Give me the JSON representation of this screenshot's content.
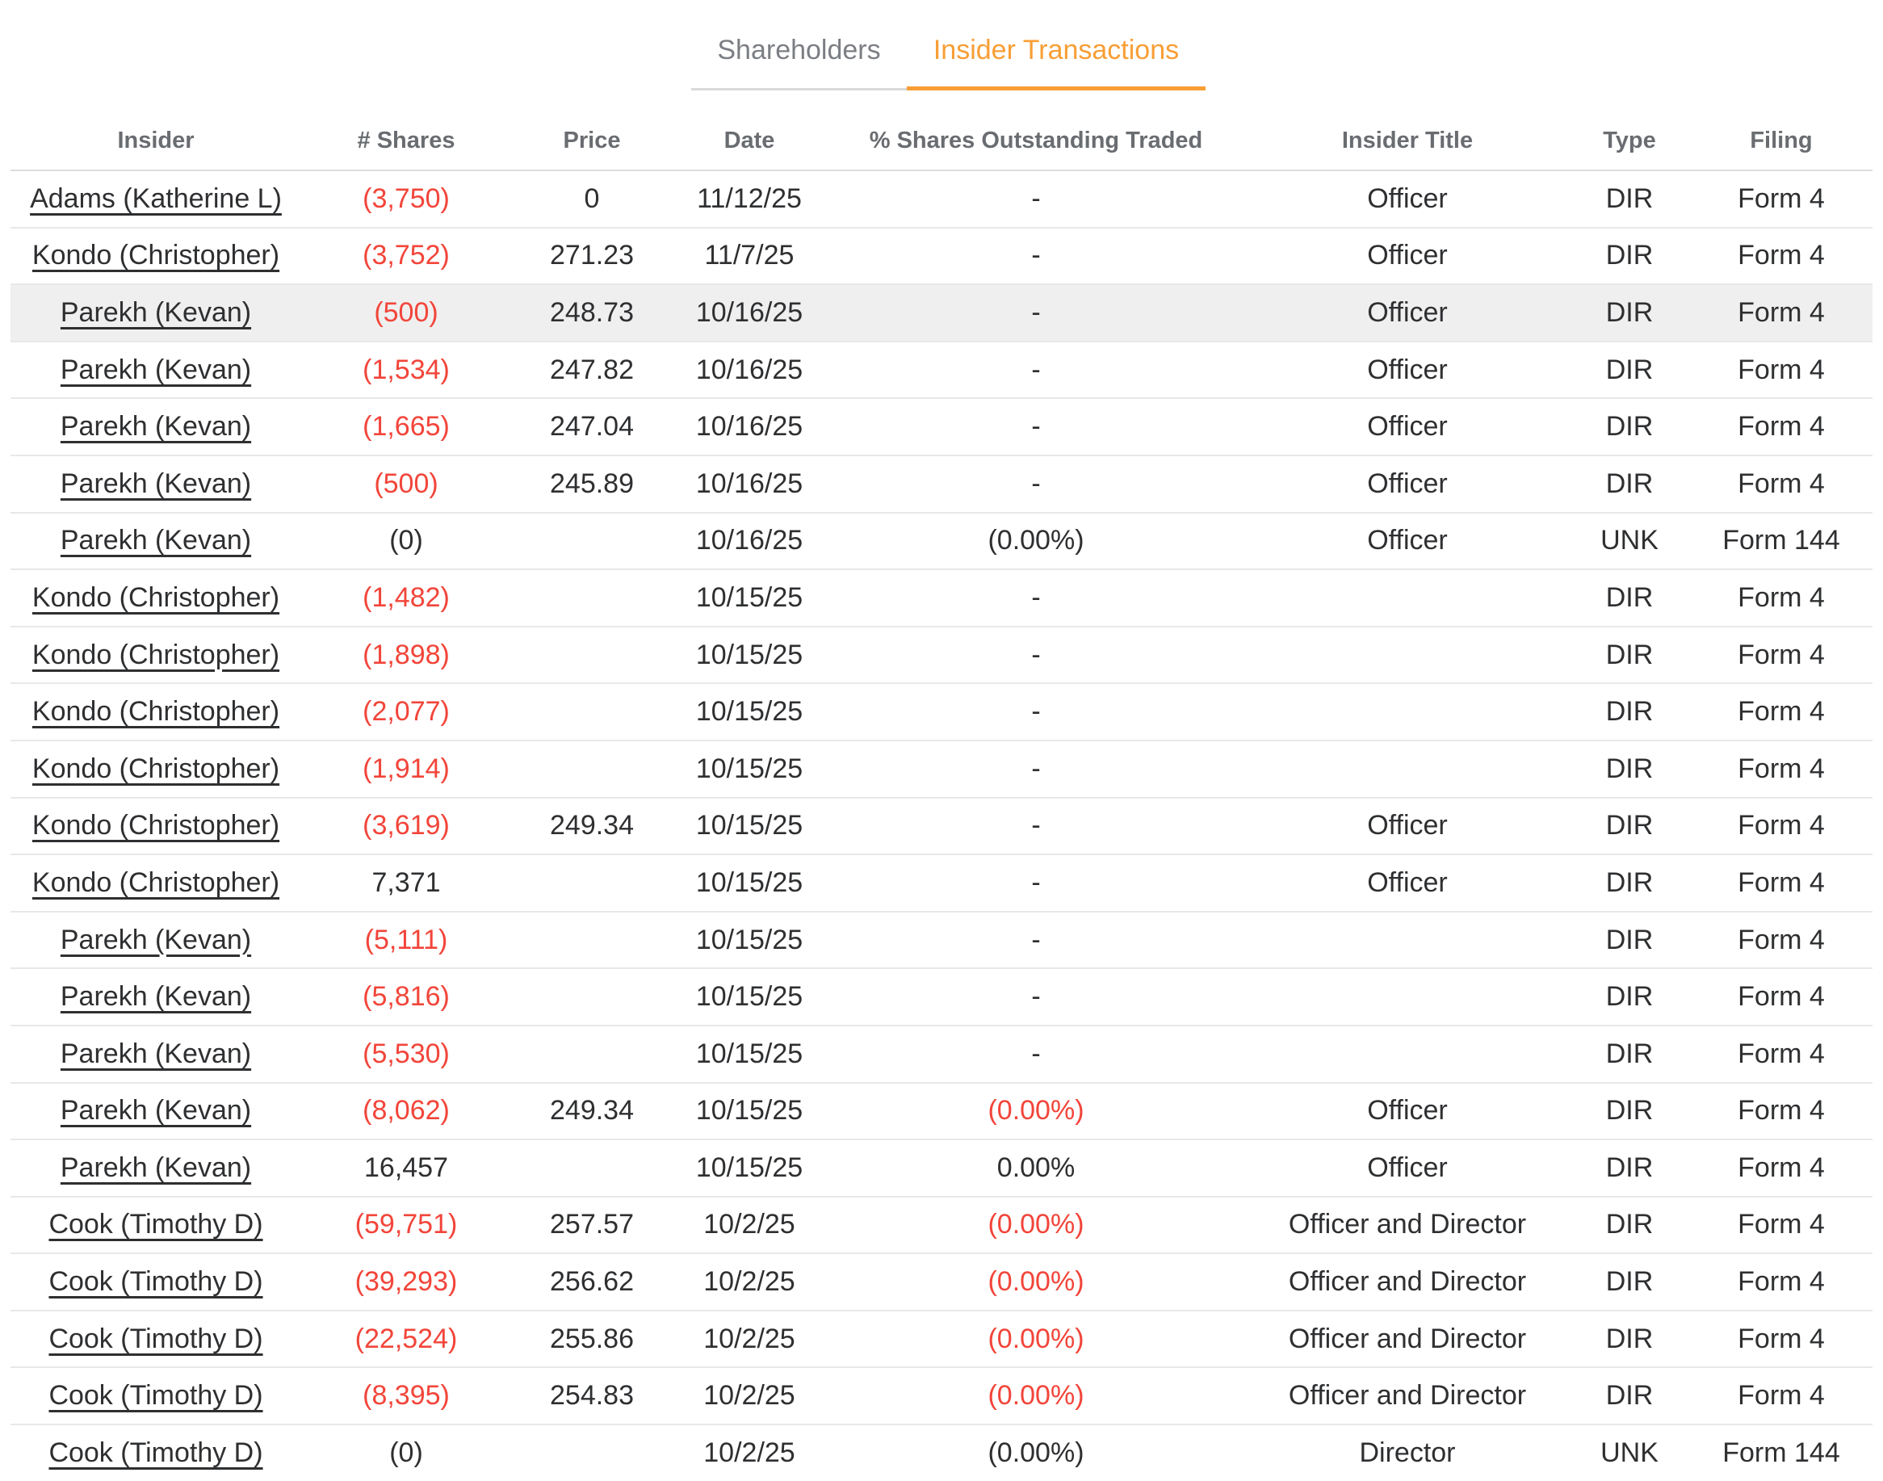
{
  "colors": {
    "accent_orange": "#F89E35",
    "negative_red": "#F2453A",
    "highlight_row_bg": "#EFEFEF",
    "inactive_tab_gray": "#7B7E83"
  },
  "tabs": [
    {
      "label": "Shareholders",
      "active": false
    },
    {
      "label": "Insider Transactions",
      "active": true
    }
  ],
  "table": {
    "columns": [
      {
        "key": "insider",
        "label": "Insider"
      },
      {
        "key": "shares",
        "label": "# Shares"
      },
      {
        "key": "price",
        "label": "Price"
      },
      {
        "key": "date",
        "label": "Date"
      },
      {
        "key": "pct-outstanding",
        "label": "% Shares Outstanding Traded"
      },
      {
        "key": "insider-title",
        "label": "Insider Title"
      },
      {
        "key": "type",
        "label": "Type"
      },
      {
        "key": "filing",
        "label": "Filing"
      }
    ],
    "rows": [
      {
        "insider": "Adams (Katherine L)",
        "shares": "(3,750)",
        "shares_red": true,
        "price": "0",
        "date": "11/12/25",
        "pct_outstanding": "-",
        "pct_red": false,
        "insider_title": "Officer",
        "type": "DIR",
        "filing": "Form 4",
        "highlighted": false
      },
      {
        "insider": "Kondo (Christopher)",
        "shares": "(3,752)",
        "shares_red": true,
        "price": "271.23",
        "date": "11/7/25",
        "pct_outstanding": "-",
        "pct_red": false,
        "insider_title": "Officer",
        "type": "DIR",
        "filing": "Form 4",
        "highlighted": false
      },
      {
        "insider": "Parekh (Kevan)",
        "shares": "(500)",
        "shares_red": true,
        "price": "248.73",
        "date": "10/16/25",
        "pct_outstanding": "-",
        "pct_red": false,
        "insider_title": "Officer",
        "type": "DIR",
        "filing": "Form 4",
        "highlighted": true
      },
      {
        "insider": "Parekh (Kevan)",
        "shares": "(1,534)",
        "shares_red": true,
        "price": "247.82",
        "date": "10/16/25",
        "pct_outstanding": "-",
        "pct_red": false,
        "insider_title": "Officer",
        "type": "DIR",
        "filing": "Form 4",
        "highlighted": false
      },
      {
        "insider": "Parekh (Kevan)",
        "shares": "(1,665)",
        "shares_red": true,
        "price": "247.04",
        "date": "10/16/25",
        "pct_outstanding": "-",
        "pct_red": false,
        "insider_title": "Officer",
        "type": "DIR",
        "filing": "Form 4",
        "highlighted": false
      },
      {
        "insider": "Parekh (Kevan)",
        "shares": "(500)",
        "shares_red": true,
        "price": "245.89",
        "date": "10/16/25",
        "pct_outstanding": "-",
        "pct_red": false,
        "insider_title": "Officer",
        "type": "DIR",
        "filing": "Form 4",
        "highlighted": false
      },
      {
        "insider": "Parekh (Kevan)",
        "shares": "(0)",
        "shares_red": false,
        "price": "",
        "date": "10/16/25",
        "pct_outstanding": "(0.00%)",
        "pct_red": false,
        "insider_title": "Officer",
        "type": "UNK",
        "filing": "Form 144",
        "highlighted": false
      },
      {
        "insider": "Kondo (Christopher)",
        "shares": "(1,482)",
        "shares_red": true,
        "price": "",
        "date": "10/15/25",
        "pct_outstanding": "-",
        "pct_red": false,
        "insider_title": "",
        "type": "DIR",
        "filing": "Form 4",
        "highlighted": false
      },
      {
        "insider": "Kondo (Christopher)",
        "shares": "(1,898)",
        "shares_red": true,
        "price": "",
        "date": "10/15/25",
        "pct_outstanding": "-",
        "pct_red": false,
        "insider_title": "",
        "type": "DIR",
        "filing": "Form 4",
        "highlighted": false
      },
      {
        "insider": "Kondo (Christopher)",
        "shares": "(2,077)",
        "shares_red": true,
        "price": "",
        "date": "10/15/25",
        "pct_outstanding": "-",
        "pct_red": false,
        "insider_title": "",
        "type": "DIR",
        "filing": "Form 4",
        "highlighted": false
      },
      {
        "insider": "Kondo (Christopher)",
        "shares": "(1,914)",
        "shares_red": true,
        "price": "",
        "date": "10/15/25",
        "pct_outstanding": "-",
        "pct_red": false,
        "insider_title": "",
        "type": "DIR",
        "filing": "Form 4",
        "highlighted": false
      },
      {
        "insider": "Kondo (Christopher)",
        "shares": "(3,619)",
        "shares_red": true,
        "price": "249.34",
        "date": "10/15/25",
        "pct_outstanding": "-",
        "pct_red": false,
        "insider_title": "Officer",
        "type": "DIR",
        "filing": "Form 4",
        "highlighted": false
      },
      {
        "insider": "Kondo (Christopher)",
        "shares": "7,371",
        "shares_red": false,
        "price": "",
        "date": "10/15/25",
        "pct_outstanding": "-",
        "pct_red": false,
        "insider_title": "Officer",
        "type": "DIR",
        "filing": "Form 4",
        "highlighted": false
      },
      {
        "insider": "Parekh (Kevan)",
        "shares": "(5,111)",
        "shares_red": true,
        "price": "",
        "date": "10/15/25",
        "pct_outstanding": "-",
        "pct_red": false,
        "insider_title": "",
        "type": "DIR",
        "filing": "Form 4",
        "highlighted": false
      },
      {
        "insider": "Parekh (Kevan)",
        "shares": "(5,816)",
        "shares_red": true,
        "price": "",
        "date": "10/15/25",
        "pct_outstanding": "-",
        "pct_red": false,
        "insider_title": "",
        "type": "DIR",
        "filing": "Form 4",
        "highlighted": false
      },
      {
        "insider": "Parekh (Kevan)",
        "shares": "(5,530)",
        "shares_red": true,
        "price": "",
        "date": "10/15/25",
        "pct_outstanding": "-",
        "pct_red": false,
        "insider_title": "",
        "type": "DIR",
        "filing": "Form 4",
        "highlighted": false
      },
      {
        "insider": "Parekh (Kevan)",
        "shares": "(8,062)",
        "shares_red": true,
        "price": "249.34",
        "date": "10/15/25",
        "pct_outstanding": "(0.00%)",
        "pct_red": true,
        "insider_title": "Officer",
        "type": "DIR",
        "filing": "Form 4",
        "highlighted": false
      },
      {
        "insider": "Parekh (Kevan)",
        "shares": "16,457",
        "shares_red": false,
        "price": "",
        "date": "10/15/25",
        "pct_outstanding": "0.00%",
        "pct_red": false,
        "insider_title": "Officer",
        "type": "DIR",
        "filing": "Form 4",
        "highlighted": false
      },
      {
        "insider": "Cook (Timothy D)",
        "shares": "(59,751)",
        "shares_red": true,
        "price": "257.57",
        "date": "10/2/25",
        "pct_outstanding": "(0.00%)",
        "pct_red": true,
        "insider_title": "Officer and Director",
        "type": "DIR",
        "filing": "Form 4",
        "highlighted": false
      },
      {
        "insider": "Cook (Timothy D)",
        "shares": "(39,293)",
        "shares_red": true,
        "price": "256.62",
        "date": "10/2/25",
        "pct_outstanding": "(0.00%)",
        "pct_red": true,
        "insider_title": "Officer and Director",
        "type": "DIR",
        "filing": "Form 4",
        "highlighted": false
      },
      {
        "insider": "Cook (Timothy D)",
        "shares": "(22,524)",
        "shares_red": true,
        "price": "255.86",
        "date": "10/2/25",
        "pct_outstanding": "(0.00%)",
        "pct_red": true,
        "insider_title": "Officer and Director",
        "type": "DIR",
        "filing": "Form 4",
        "highlighted": false
      },
      {
        "insider": "Cook (Timothy D)",
        "shares": "(8,395)",
        "shares_red": true,
        "price": "254.83",
        "date": "10/2/25",
        "pct_outstanding": "(0.00%)",
        "pct_red": true,
        "insider_title": "Officer and Director",
        "type": "DIR",
        "filing": "Form 4",
        "highlighted": false
      },
      {
        "insider": "Cook (Timothy D)",
        "shares": "(0)",
        "shares_red": false,
        "price": "",
        "date": "10/2/25",
        "pct_outstanding": "(0.00%)",
        "pct_red": false,
        "insider_title": "Director",
        "type": "UNK",
        "filing": "Form 144",
        "highlighted": false
      }
    ]
  }
}
